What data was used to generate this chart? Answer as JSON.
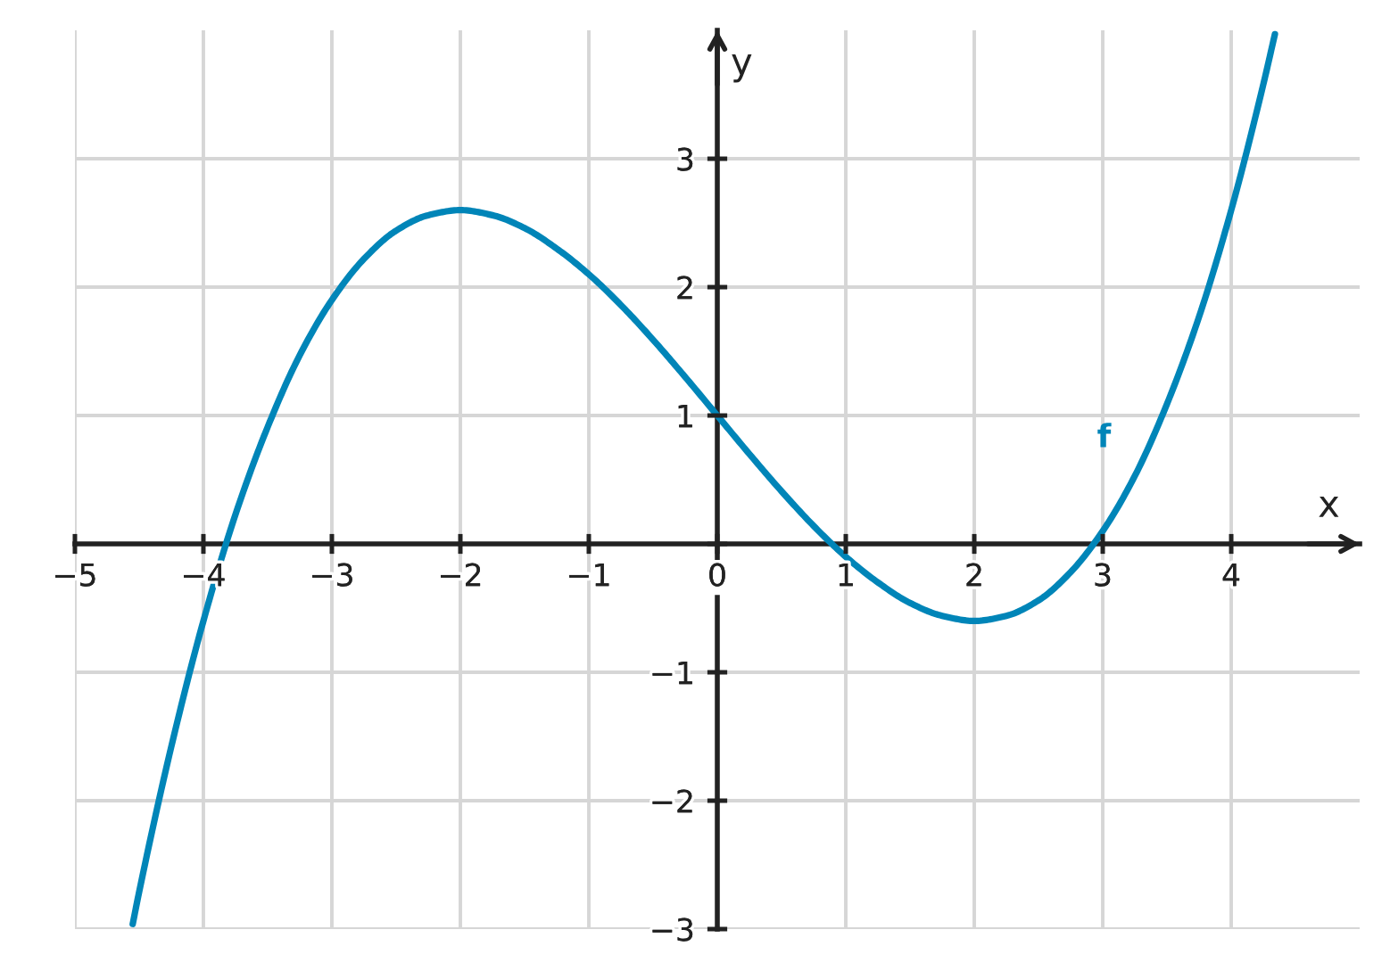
{
  "chart_data": {
    "type": "line",
    "xlabel": "x",
    "ylabel": "y",
    "x": [
      -4.55,
      -4.5,
      -4.25,
      -4.0,
      -3.75,
      -3.5,
      -3.25,
      -3.0,
      -2.75,
      -2.5,
      -2.25,
      -2.0,
      -1.75,
      -1.5,
      -1.25,
      -1.0,
      -0.75,
      -0.5,
      -0.25,
      0,
      0.25,
      0.5,
      0.75,
      1.0,
      1.25,
      1.5,
      1.75,
      2.0,
      2.25,
      2.5,
      2.75,
      3.0,
      3.25,
      3.5,
      3.75,
      4.0,
      4.25,
      4.34
    ],
    "series": [
      {
        "name": "f",
        "color": "#0085b8",
        "values": [
          -2.96,
          -2.71,
          -1.58,
          -0.6,
          0.23,
          0.91,
          1.47,
          1.9,
          2.22,
          2.44,
          2.56,
          2.6,
          2.56,
          2.46,
          2.3,
          2.1,
          1.86,
          1.59,
          1.3,
          1,
          0.7,
          0.41,
          0.14,
          -0.1,
          -0.3,
          -0.46,
          -0.56,
          -0.6,
          -0.56,
          -0.44,
          -0.22,
          0.1,
          0.53,
          1.09,
          1.77,
          2.6,
          3.58,
          3.97
        ]
      }
    ],
    "xlim": [
      -5,
      5
    ],
    "ylim": [
      -3,
      4
    ],
    "xticks": [
      -5,
      -4,
      -3,
      -2,
      -1,
      {
        "value": 0,
        "label": "0"
      },
      1,
      2,
      3,
      4
    ],
    "yticks": [
      -3,
      -2,
      -1,
      {
        "value": 0,
        "label": null
      },
      1,
      2,
      3
    ],
    "grid": true,
    "line_style": "solid"
  }
}
